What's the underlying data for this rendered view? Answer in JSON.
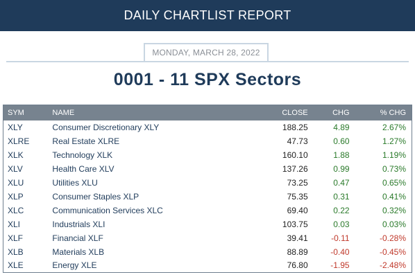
{
  "header": {
    "title": "DAILY CHARTLIST REPORT"
  },
  "report": {
    "date": "MONDAY, MARCH 28, 2022",
    "title": "0001 - 11 SPX Sectors"
  },
  "colors": {
    "banner": "#1f3b5a",
    "positive": "#2a7a2a",
    "negative": "#c0392b",
    "table_header": "#77838f"
  },
  "table": {
    "columns": {
      "sym": "SYM",
      "name": "NAME",
      "close": "CLOSE",
      "chg": "CHG",
      "pct": "% CHG"
    },
    "rows": [
      {
        "sym": "XLY",
        "name": "Consumer Discretionary XLY",
        "close": "188.25",
        "chg": "4.89",
        "pct": "2.67%",
        "dir": "pos"
      },
      {
        "sym": "XLRE",
        "name": "Real Estate XLRE",
        "close": "47.73",
        "chg": "0.60",
        "pct": "1.27%",
        "dir": "pos"
      },
      {
        "sym": "XLK",
        "name": "Technology XLK",
        "close": "160.10",
        "chg": "1.88",
        "pct": "1.19%",
        "dir": "pos"
      },
      {
        "sym": "XLV",
        "name": "Health Care XLV",
        "close": "137.26",
        "chg": "0.99",
        "pct": "0.73%",
        "dir": "pos"
      },
      {
        "sym": "XLU",
        "name": "Utilities XLU",
        "close": "73.25",
        "chg": "0.47",
        "pct": "0.65%",
        "dir": "pos"
      },
      {
        "sym": "XLP",
        "name": "Consumer Staples XLP",
        "close": "75.35",
        "chg": "0.31",
        "pct": "0.41%",
        "dir": "pos"
      },
      {
        "sym": "XLC",
        "name": "Communication Services XLC",
        "close": "69.40",
        "chg": "0.22",
        "pct": "0.32%",
        "dir": "pos"
      },
      {
        "sym": "XLI",
        "name": "Industrials XLI",
        "close": "103.75",
        "chg": "0.03",
        "pct": "0.03%",
        "dir": "pos"
      },
      {
        "sym": "XLF",
        "name": "Financial XLF",
        "close": "39.41",
        "chg": "-0.11",
        "pct": "-0.28%",
        "dir": "neg"
      },
      {
        "sym": "XLB",
        "name": "Materials XLB",
        "close": "88.89",
        "chg": "-0.40",
        "pct": "-0.45%",
        "dir": "neg"
      },
      {
        "sym": "XLE",
        "name": "Energy XLE",
        "close": "76.80",
        "chg": "-1.95",
        "pct": "-2.48%",
        "dir": "neg"
      }
    ]
  }
}
